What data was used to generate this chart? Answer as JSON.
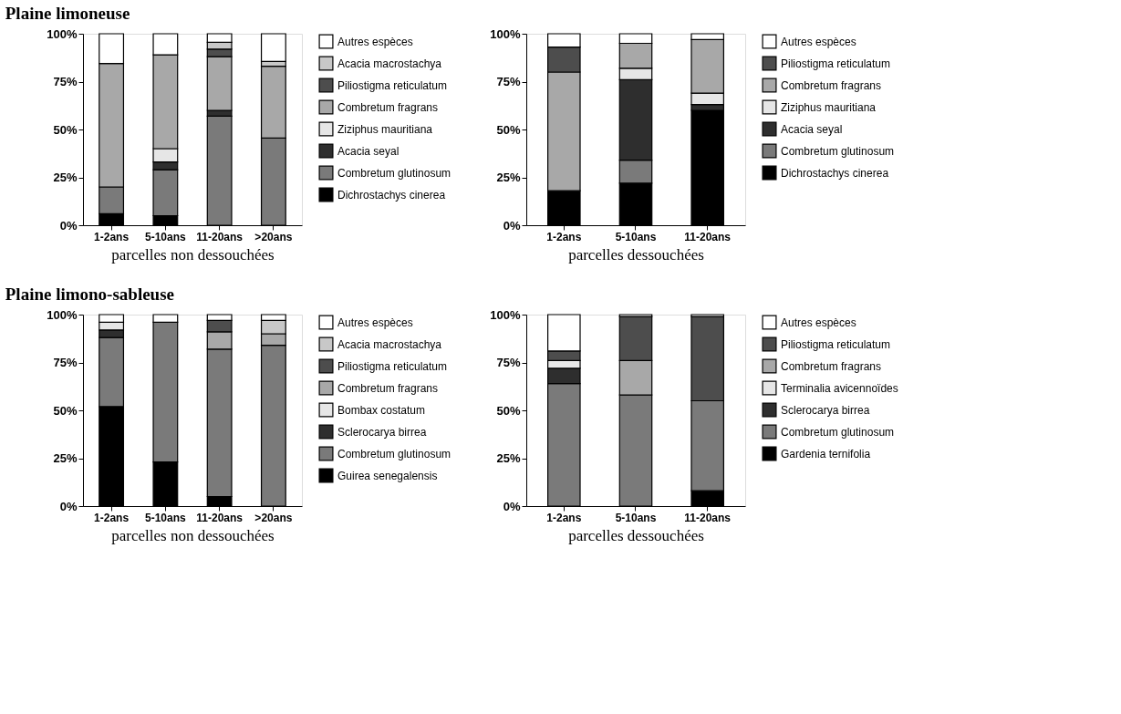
{
  "chart_data": [
    {
      "type": "bar",
      "stacked": true,
      "title": "Plaine limoneuse",
      "xlabel": "parcelles non dessouchées",
      "categories": [
        "1-2ans",
        "5-10ans",
        "11-20ans",
        ">20ans"
      ],
      "ylim": [
        0,
        100
      ],
      "yticks": [
        {
          "value": 0,
          "label": "0%"
        },
        {
          "value": 25,
          "label": "25%"
        },
        {
          "value": 50,
          "label": "50%"
        },
        {
          "value": 75,
          "label": "75%"
        },
        {
          "value": 100,
          "label": "100%"
        }
      ],
      "grid": false,
      "legend": "right",
      "series": [
        {
          "name": "Dichrostachys cinerea",
          "color": "#000000",
          "values": [
            6,
            5,
            null,
            null
          ]
        },
        {
          "name": "Combretum glutinosum",
          "color": "#7a7a7a",
          "values": [
            14,
            24,
            57,
            45.5
          ]
        },
        {
          "name": "Acacia seyal",
          "color": "#2e2e2e",
          "values": [
            null,
            4,
            3,
            null
          ]
        },
        {
          "name": "Ziziphus mauritiana",
          "color": "#e6e6e6",
          "values": [
            null,
            7,
            null,
            null
          ]
        },
        {
          "name": "Combretum fragrans",
          "color": "#a8a8a8",
          "values": [
            64.5,
            49,
            28,
            37.5
          ]
        },
        {
          "name": "Piliostigma reticulatum",
          "color": "#4d4d4d",
          "values": [
            null,
            null,
            4,
            null
          ]
        },
        {
          "name": "Acacia macrostachya",
          "color": "#c8c8c8",
          "values": [
            null,
            null,
            3.5,
            2.5
          ]
        },
        {
          "name": "Autres espèces",
          "color": "#ffffff",
          "values": [
            15.5,
            11,
            4.5,
            14.5
          ]
        }
      ]
    },
    {
      "type": "bar",
      "stacked": true,
      "xlabel": "parcelles dessouchées",
      "categories": [
        "1-2ans",
        "5-10ans",
        "11-20ans"
      ],
      "ylim": [
        0,
        100
      ],
      "yticks": [
        {
          "value": 0,
          "label": "0%"
        },
        {
          "value": 25,
          "label": "25%"
        },
        {
          "value": 50,
          "label": "50%"
        },
        {
          "value": 75,
          "label": "75%"
        },
        {
          "value": 100,
          "label": "100%"
        }
      ],
      "grid": false,
      "legend": "right",
      "series": [
        {
          "name": "Dichrostachys cinerea",
          "color": "#000000",
          "values": [
            18,
            22,
            60
          ]
        },
        {
          "name": "Combretum glutinosum",
          "color": "#7a7a7a",
          "values": [
            null,
            12,
            null
          ]
        },
        {
          "name": "Acacia seyal",
          "color": "#2e2e2e",
          "values": [
            null,
            42,
            3
          ]
        },
        {
          "name": "Ziziphus mauritiana",
          "color": "#e6e6e6",
          "values": [
            null,
            6,
            6
          ]
        },
        {
          "name": "Combretum fragrans",
          "color": "#a8a8a8",
          "values": [
            62,
            13,
            28
          ]
        },
        {
          "name": "Piliostigma reticulatum",
          "color": "#4d4d4d",
          "values": [
            13,
            null,
            null
          ]
        },
        {
          "name": "Autres espèces",
          "color": "#ffffff",
          "values": [
            7,
            5,
            3
          ]
        }
      ]
    },
    {
      "type": "bar",
      "stacked": true,
      "title": "Plaine limono-sableuse",
      "xlabel": "parcelles non dessouchées",
      "categories": [
        "1-2ans",
        "5-10ans",
        "11-20ans",
        ">20ans"
      ],
      "ylim": [
        0,
        100
      ],
      "yticks": [
        {
          "value": 0,
          "label": "0%"
        },
        {
          "value": 25,
          "label": "25%"
        },
        {
          "value": 50,
          "label": "50%"
        },
        {
          "value": 75,
          "label": "75%"
        },
        {
          "value": 100,
          "label": "100%"
        }
      ],
      "grid": false,
      "legend": "right",
      "series": [
        {
          "name": "Guirea senegalensis",
          "color": "#000000",
          "values": [
            52,
            23,
            5,
            null
          ]
        },
        {
          "name": "Combretum glutinosum",
          "color": "#7a7a7a",
          "values": [
            36,
            73,
            77,
            84
          ]
        },
        {
          "name": "Sclerocarya birrea",
          "color": "#2e2e2e",
          "values": [
            4,
            null,
            null,
            null
          ]
        },
        {
          "name": "Bombax costatum",
          "color": "#e6e6e6",
          "values": [
            4,
            null,
            null,
            null
          ]
        },
        {
          "name": "Combretum fragrans",
          "color": "#a8a8a8",
          "values": [
            null,
            null,
            9,
            6
          ]
        },
        {
          "name": "Piliostigma reticulatum",
          "color": "#4d4d4d",
          "values": [
            null,
            null,
            6,
            null
          ]
        },
        {
          "name": "Acacia macrostachya",
          "color": "#c8c8c8",
          "values": [
            null,
            null,
            null,
            7
          ]
        },
        {
          "name": "Autres espèces",
          "color": "#ffffff",
          "values": [
            4,
            4,
            3,
            3
          ]
        }
      ]
    },
    {
      "type": "bar",
      "stacked": true,
      "xlabel": "parcelles dessouchées",
      "categories": [
        "1-2ans",
        "5-10ans",
        "11-20ans"
      ],
      "ylim": [
        0,
        100
      ],
      "yticks": [
        {
          "value": 0,
          "label": "0%"
        },
        {
          "value": 25,
          "label": "25%"
        },
        {
          "value": 50,
          "label": "50%"
        },
        {
          "value": 75,
          "label": "75%"
        },
        {
          "value": 100,
          "label": "100%"
        }
      ],
      "grid": false,
      "legend": "right",
      "series": [
        {
          "name": "Gardenia ternifolia",
          "color": "#000000",
          "values": [
            null,
            null,
            8
          ]
        },
        {
          "name": "Combretum glutinosum",
          "color": "#7a7a7a",
          "values": [
            64,
            58,
            47
          ]
        },
        {
          "name": "Sclerocarya birrea",
          "color": "#2e2e2e",
          "values": [
            8,
            null,
            null
          ]
        },
        {
          "name": "Terminalia avicennoïdes",
          "color": "#e6e6e6",
          "values": [
            4,
            null,
            null
          ]
        },
        {
          "name": "Combretum fragrans",
          "color": "#a8a8a8",
          "values": [
            null,
            18,
            null
          ]
        },
        {
          "name": "Piliostigma reticulatum",
          "color": "#4d4d4d",
          "values": [
            5,
            23,
            44
          ]
        },
        {
          "name": "Autres espèces",
          "color": "#ffffff",
          "values": [
            19,
            1,
            1
          ]
        }
      ]
    }
  ]
}
